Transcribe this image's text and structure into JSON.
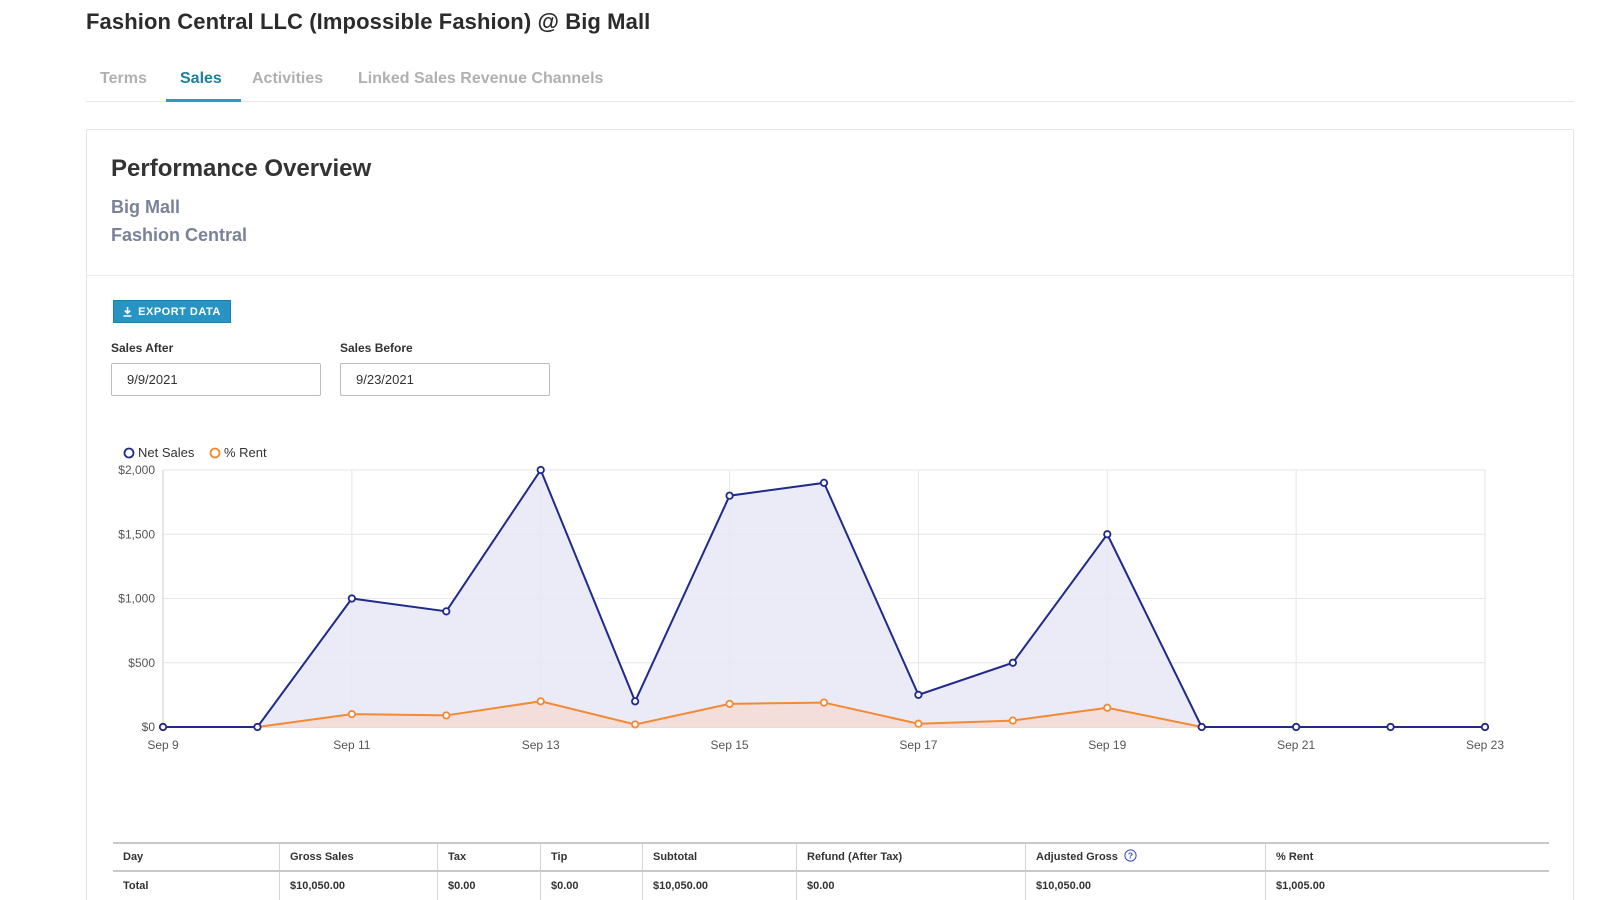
{
  "header": {
    "title": "Fashion Central LLC (Impossible Fashion) @ Big Mall"
  },
  "tabs": [
    {
      "label": "Terms"
    },
    {
      "label": "Sales"
    },
    {
      "label": "Activities"
    },
    {
      "label": "Linked Sales Revenue Channels"
    }
  ],
  "active_tab": "Sales",
  "overview": {
    "title": "Performance Overview",
    "property": "Big Mall",
    "tenant": "Fashion Central"
  },
  "export_button": {
    "label": "EXPORT DATA",
    "icon": "download-icon"
  },
  "filters": {
    "sales_after": {
      "label": "Sales After",
      "value": "9/9/2021"
    },
    "sales_before": {
      "label": "Sales Before",
      "value": "9/23/2021"
    }
  },
  "colors": {
    "accent": "#2794c4",
    "net_sales": "#1f2a8a",
    "rent": "#f28a34",
    "net_fill": "#e6e7f4",
    "rent_fill": "#f6dcd6"
  },
  "chart_data": {
    "type": "area",
    "x": [
      "Sep 9",
      "Sep 10",
      "Sep 11",
      "Sep 12",
      "Sep 13",
      "Sep 14",
      "Sep 15",
      "Sep 16",
      "Sep 17",
      "Sep 18",
      "Sep 19",
      "Sep 20",
      "Sep 21",
      "Sep 22",
      "Sep 23"
    ],
    "x_tick_labels": [
      "Sep 9",
      "Sep 11",
      "Sep 13",
      "Sep 15",
      "Sep 17",
      "Sep 19",
      "Sep 21",
      "Sep 23"
    ],
    "y_tick_labels": [
      "$2,000",
      "$1,500",
      "$1,000",
      "$500",
      "$0"
    ],
    "ylim": [
      0,
      2000
    ],
    "grid": true,
    "legend_position": "top-left",
    "series": [
      {
        "name": "Net Sales",
        "values": [
          0,
          0,
          1000,
          900,
          2000,
          200,
          1800,
          1900,
          250,
          500,
          1500,
          0,
          0,
          0,
          0
        ]
      },
      {
        "name": "% Rent",
        "values": [
          0,
          0,
          100,
          90,
          200,
          20,
          180,
          190,
          25,
          50,
          150,
          0,
          0,
          0,
          0
        ]
      }
    ]
  },
  "table": {
    "columns": [
      "Day",
      "Gross Sales",
      "Tax",
      "Tip",
      "Subtotal",
      "Refund (After Tax)",
      "Adjusted Gross",
      "% Rent"
    ],
    "rows": [
      [
        "Total",
        "$10,050.00",
        "$0.00",
        "$0.00",
        "$10,050.00",
        "$0.00",
        "$10,050.00",
        "$1,005.00"
      ]
    ]
  }
}
